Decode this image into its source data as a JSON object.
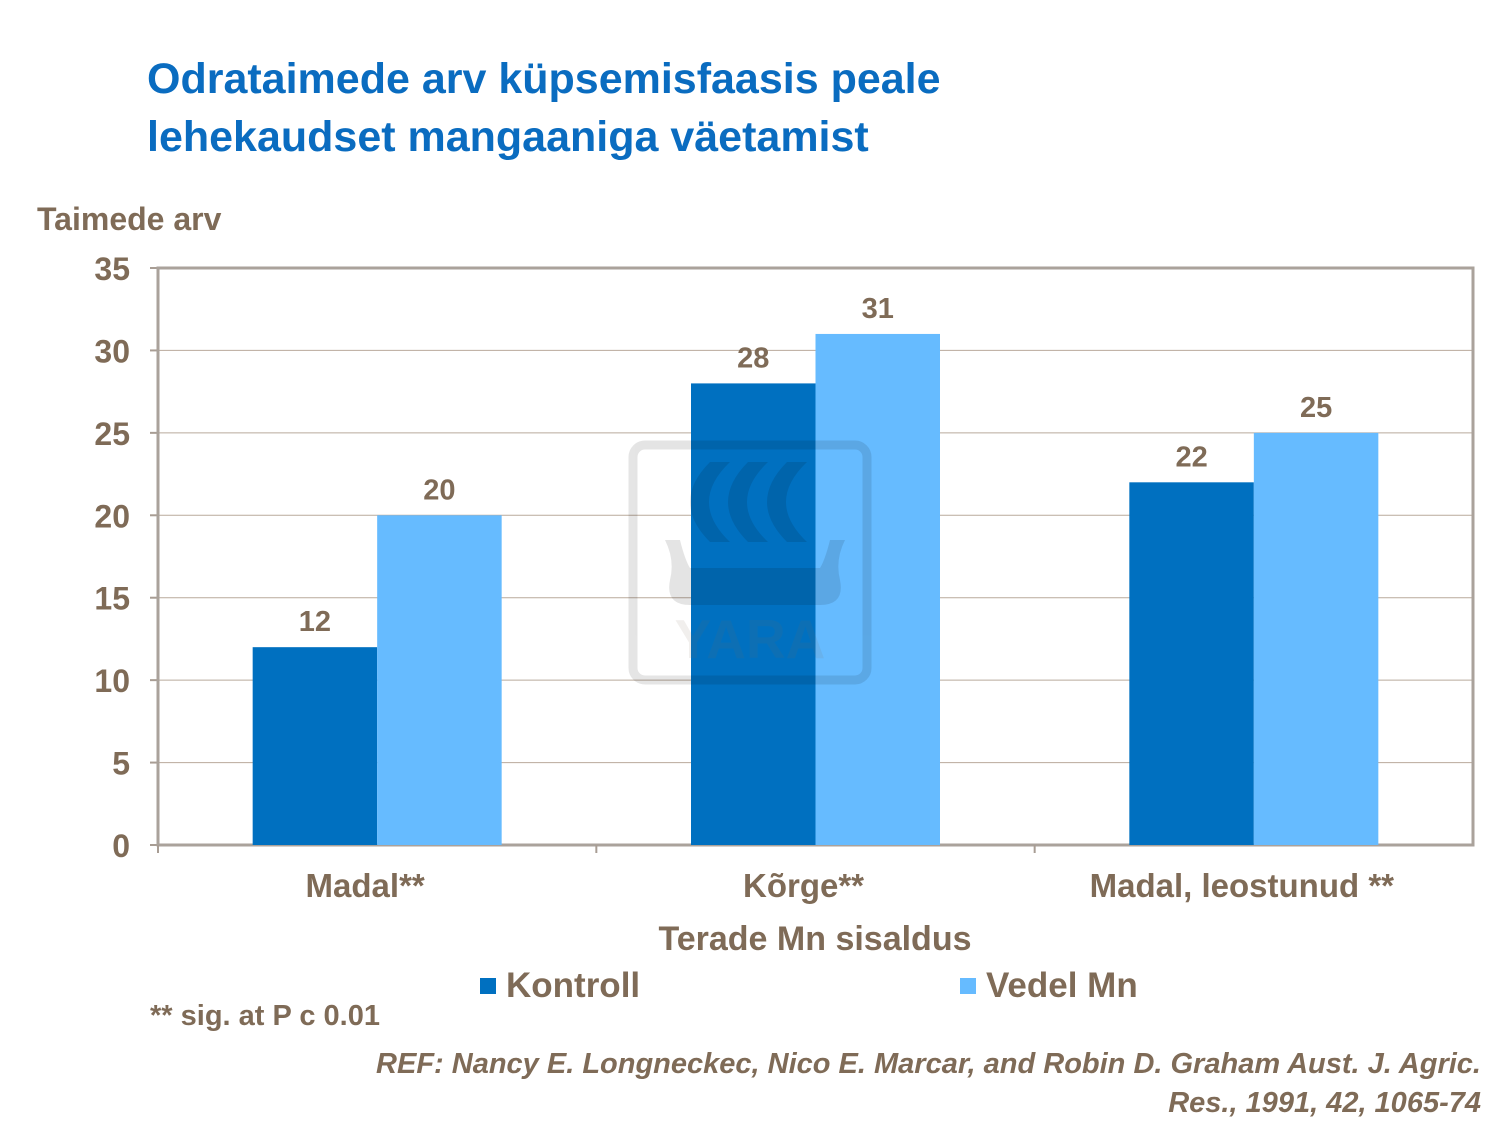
{
  "chart_data": {
    "type": "bar",
    "title": "Odrataimede arv küpsemisfaasis peale lehekaudset mangaaniga väetamist",
    "title_lines": [
      "Odrataimede arv küpsemisfaasis peale",
      "lehekaudset mangaaniga väetamist"
    ],
    "ylabel": "Taimede arv",
    "xlabel": "Terade Mn sisaldus",
    "categories": [
      "Madal**",
      "Kõrge**",
      "Madal,  leostunud **"
    ],
    "series": [
      {
        "name": "Kontroll",
        "values": [
          12,
          28,
          22
        ],
        "color": "#0070c0"
      },
      {
        "name": "Vedel Mn",
        "values": [
          20,
          31,
          25
        ],
        "color": "#66bbff"
      }
    ],
    "ylim": [
      0,
      35
    ],
    "yticks": [
      0,
      5,
      10,
      15,
      20,
      25,
      30,
      35
    ],
    "grid": true,
    "legend_position": "bottom",
    "data_labels": true
  },
  "footnote": "** sig. at P c 0.01",
  "reference_lines": [
    "REF: Nancy E. Longneckec, Nico E. Marcar, and Robin D. Graham Aust. J. Agric.",
    "Res., 1991, 42, 1065-74"
  ],
  "watermark": "YARA"
}
